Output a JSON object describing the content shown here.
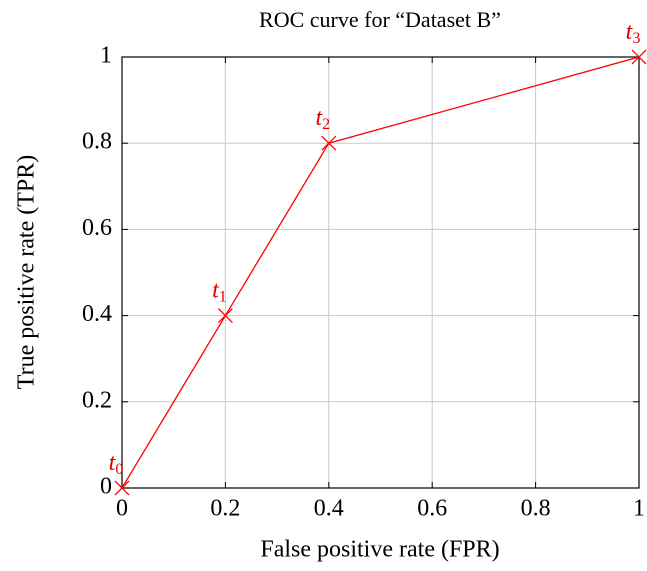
{
  "chart_data": {
    "type": "line",
    "title": "ROC curve for “Dataset B”",
    "xlabel": "False positive rate (FPR)",
    "ylabel": "True positive rate (TPR)",
    "x": [
      0,
      0.2,
      0.4,
      1
    ],
    "series": [
      {
        "name": "ROC",
        "color": "#ff0000",
        "values": [
          0,
          0.4,
          0.8,
          1
        ]
      }
    ],
    "point_labels": [
      {
        "text": "t",
        "sub": "0"
      },
      {
        "text": "t",
        "sub": "1"
      },
      {
        "text": "t",
        "sub": "2"
      },
      {
        "text": "t",
        "sub": "3"
      }
    ],
    "xlim": [
      0,
      1
    ],
    "xticks": [
      0,
      0.2,
      0.4,
      0.6,
      0.8,
      1
    ],
    "ylim": [
      0,
      1
    ],
    "yticks": [
      0,
      0.2,
      0.4,
      0.6,
      0.8,
      1
    ],
    "grid": true
  }
}
